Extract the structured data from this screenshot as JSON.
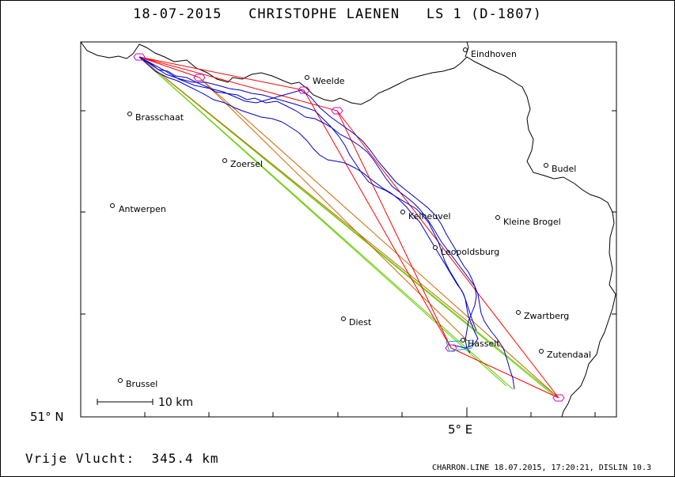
{
  "header": {
    "title": "18-07-2015   CHRISTOPHE LAENEN   LS 1 (D-1807)"
  },
  "axes": {
    "lat_label": "51° N",
    "lon_label": "5° E"
  },
  "scale_bar": {
    "label": "10 km"
  },
  "cities": [
    {
      "name": "Eindhoven"
    },
    {
      "name": "Weelde"
    },
    {
      "name": "Brasschaat"
    },
    {
      "name": "Zoersel"
    },
    {
      "name": "Budel"
    },
    {
      "name": "Antwerpen"
    },
    {
      "name": "Kelheuvel"
    },
    {
      "name": "Kleine Brogel"
    },
    {
      "name": "Leopoldsburg"
    },
    {
      "name": "Zwartberg"
    },
    {
      "name": "Diest"
    },
    {
      "name": "Hasselt"
    },
    {
      "name": "Zutendaal"
    },
    {
      "name": "Brussel"
    }
  ],
  "footer": {
    "distance": "Vrije Vlucht:  345.4 km",
    "credit": "CHARRON.LINE 18.07.2015, 17:20:21, DISLIN 10.3"
  },
  "colors": {
    "track": "#0000cc",
    "task_red": "#ff0000",
    "task_orange": "#cc6600",
    "task_green": "#66cc00",
    "turnpoint": "#cc00cc",
    "start_marker": "#00aacc",
    "border": "#000000"
  }
}
